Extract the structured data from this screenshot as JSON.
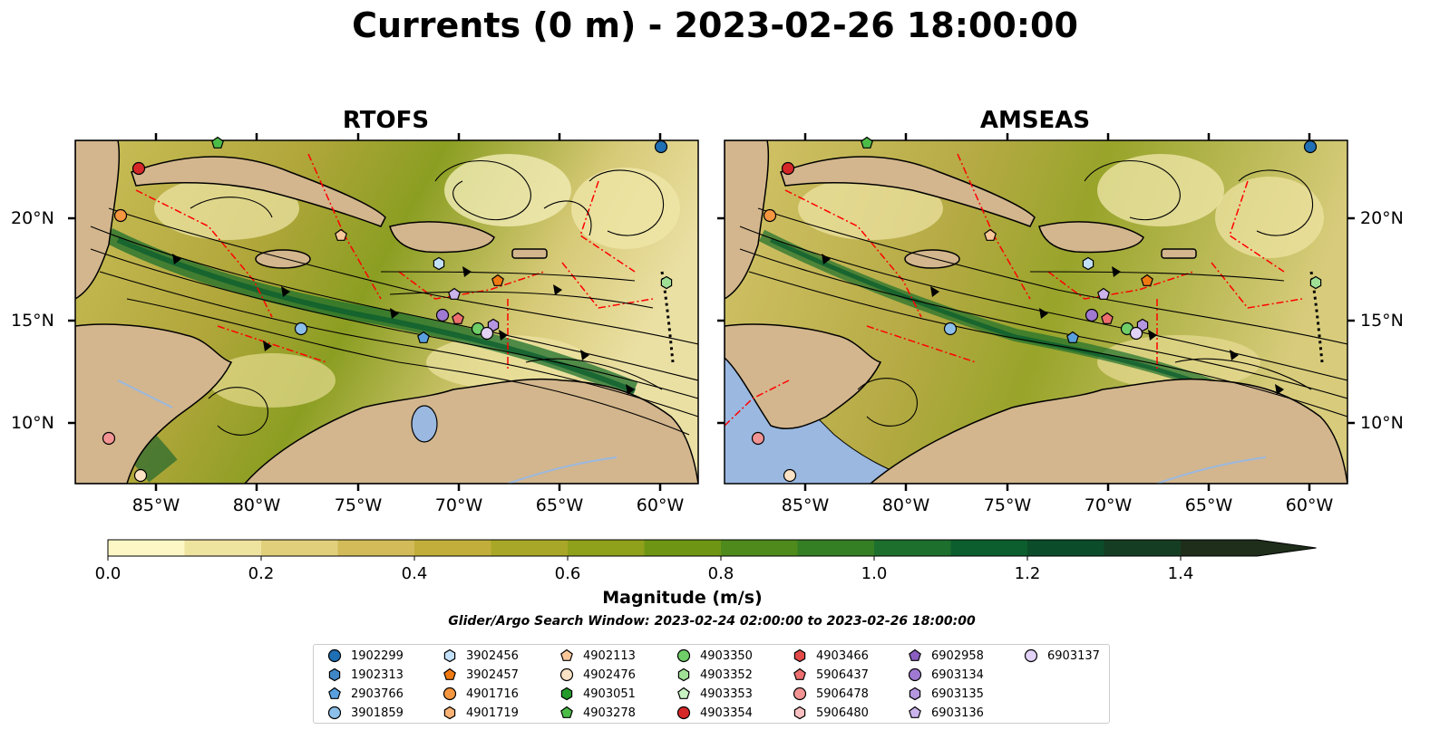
{
  "title": "Currents (0 m) - 2023-02-26 18:00:00",
  "panels": [
    {
      "id": "rtofs",
      "title": "RTOFS"
    },
    {
      "id": "amseas",
      "title": "AMSEAS"
    }
  ],
  "axes": {
    "lat_ticks": [
      "20°N",
      "15°N",
      "10°N"
    ],
    "lon_ticks": [
      "85°W",
      "80°W",
      "75°W",
      "70°W",
      "65°W",
      "60°W"
    ]
  },
  "colorbar": {
    "label": "Magnitude (m/s)",
    "ticks": [
      "0.0",
      "0.2",
      "0.4",
      "0.6",
      "0.8",
      "1.0",
      "1.2",
      "1.4"
    ],
    "colors": [
      "#fdf7c5",
      "#efe3a0",
      "#e1cf7c",
      "#d2bb58",
      "#c2af3b",
      "#a9a727",
      "#8fa01a",
      "#6e9614",
      "#4f8a1d",
      "#347e24",
      "#1c6f2c",
      "#0d5e2e",
      "#0b4c2a",
      "#153d23",
      "#1e2e1b"
    ]
  },
  "search_window": "Glider/Argo Search Window: 2023-02-24 02:00:00 to 2023-02-26 18:00:00",
  "legend": [
    {
      "id": "1902299",
      "marker": "circle",
      "color": "#1f6fb4"
    },
    {
      "id": "1902313",
      "marker": "hexagon",
      "color": "#3f86c7"
    },
    {
      "id": "2903766",
      "marker": "pentagon",
      "color": "#5aa0de"
    },
    {
      "id": "3901859",
      "marker": "circle",
      "color": "#8cc0ea"
    },
    {
      "id": "3902456",
      "marker": "hexagon",
      "color": "#c2e0f7"
    },
    {
      "id": "3902457",
      "marker": "pentagon",
      "color": "#f07a12"
    },
    {
      "id": "4901716",
      "marker": "circle",
      "color": "#f59640"
    },
    {
      "id": "4901719",
      "marker": "hexagon",
      "color": "#f8b274"
    },
    {
      "id": "4902113",
      "marker": "pentagon",
      "color": "#f9c89a"
    },
    {
      "id": "4902476",
      "marker": "circle",
      "color": "#fde3c6"
    },
    {
      "id": "4903051",
      "marker": "hexagon",
      "color": "#239a2a"
    },
    {
      "id": "4903278",
      "marker": "pentagon",
      "color": "#4cbc48"
    },
    {
      "id": "4903350",
      "marker": "circle",
      "color": "#6fce68"
    },
    {
      "id": "4903352",
      "marker": "hexagon",
      "color": "#9fe096"
    },
    {
      "id": "4903353",
      "marker": "pentagon",
      "color": "#c8f2c2"
    },
    {
      "id": "4903354",
      "marker": "circle",
      "color": "#d62728"
    },
    {
      "id": "4903466",
      "marker": "hexagon",
      "color": "#e34a4a"
    },
    {
      "id": "5906437",
      "marker": "pentagon",
      "color": "#ed6e6e"
    },
    {
      "id": "5906478",
      "marker": "circle",
      "color": "#f39494"
    },
    {
      "id": "5906480",
      "marker": "hexagon",
      "color": "#f8c0c0"
    },
    {
      "id": "6902958",
      "marker": "pentagon",
      "color": "#8a5ec0"
    },
    {
      "id": "6903134",
      "marker": "circle",
      "color": "#a07ad2"
    },
    {
      "id": "6903135",
      "marker": "hexagon",
      "color": "#b596e0"
    },
    {
      "id": "6903136",
      "marker": "pentagon",
      "color": "#cbb3ec"
    },
    {
      "id": "6903137",
      "marker": "circle",
      "color": "#e2d2f6"
    }
  ],
  "map_colors": {
    "land": "#d3b68d",
    "deep_water": "#9ab8e0",
    "eez": "#ff0000"
  }
}
